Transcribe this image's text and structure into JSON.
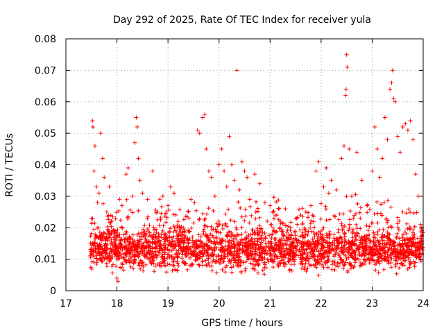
{
  "chart_data": {
    "type": "scatter",
    "title": "Day 292 of 2025, Rate Of TEC Index for receiver yula",
    "xlabel": "GPS time / hours",
    "ylabel": "ROTI / TECUs",
    "xlim": [
      17,
      24
    ],
    "ylim": [
      0,
      0.08
    ],
    "xticks": [
      17,
      18,
      19,
      20,
      21,
      22,
      23,
      24
    ],
    "xtick_labels": [
      "17",
      "18",
      "19",
      "20",
      "21",
      "22",
      "23",
      "24"
    ],
    "yticks": [
      0,
      0.01,
      0.02,
      0.03,
      0.04,
      0.05,
      0.06,
      0.07,
      0.08
    ],
    "ytick_labels": [
      "0",
      "0.01",
      "0.02",
      "0.03",
      "0.04",
      "0.05",
      "0.06",
      "0.07",
      "0.08"
    ],
    "grid": true,
    "marker": "+",
    "color": "#ff0000",
    "series": [
      {
        "name": "ROTI",
        "points": [
          [
            17.52,
            0.054
          ],
          [
            17.53,
            0.052
          ],
          [
            17.55,
            0.038
          ],
          [
            17.57,
            0.046
          ],
          [
            17.6,
            0.033
          ],
          [
            17.62,
            0.028
          ],
          [
            17.65,
            0.031
          ],
          [
            17.68,
            0.05
          ],
          [
            17.72,
            0.042
          ],
          [
            17.75,
            0.036
          ],
          [
            17.8,
            0.025
          ],
          [
            17.85,
            0.033
          ],
          [
            17.9,
            0.022
          ],
          [
            17.95,
            0.018
          ],
          [
            18.0,
            0.004
          ],
          [
            18.02,
            0.003
          ],
          [
            18.05,
            0.029
          ],
          [
            18.1,
            0.027
          ],
          [
            18.18,
            0.037
          ],
          [
            18.22,
            0.039
          ],
          [
            18.3,
            0.03
          ],
          [
            18.35,
            0.047
          ],
          [
            18.38,
            0.055
          ],
          [
            18.4,
            0.052
          ],
          [
            18.42,
            0.042
          ],
          [
            18.45,
            0.035
          ],
          [
            18.5,
            0.031
          ],
          [
            18.6,
            0.029
          ],
          [
            18.7,
            0.038
          ],
          [
            18.8,
            0.025
          ],
          [
            18.9,
            0.03
          ],
          [
            19.0,
            0.027
          ],
          [
            19.05,
            0.033
          ],
          [
            19.12,
            0.031
          ],
          [
            19.2,
            0.022
          ],
          [
            19.3,
            0.02
          ],
          [
            19.4,
            0.015
          ],
          [
            19.45,
            0.029
          ],
          [
            19.52,
            0.028
          ],
          [
            19.58,
            0.051
          ],
          [
            19.62,
            0.05
          ],
          [
            19.68,
            0.055
          ],
          [
            19.72,
            0.056
          ],
          [
            19.75,
            0.045
          ],
          [
            19.8,
            0.038
          ],
          [
            19.85,
            0.036
          ],
          [
            19.92,
            0.03
          ],
          [
            20.0,
            0.04
          ],
          [
            20.05,
            0.045
          ],
          [
            20.1,
            0.038
          ],
          [
            20.15,
            0.033
          ],
          [
            20.2,
            0.049
          ],
          [
            20.25,
            0.04
          ],
          [
            20.3,
            0.035
          ],
          [
            20.35,
            0.07
          ],
          [
            20.4,
            0.032
          ],
          [
            20.45,
            0.041
          ],
          [
            20.5,
            0.038
          ],
          [
            20.55,
            0.036
          ],
          [
            20.6,
            0.029
          ],
          [
            20.7,
            0.037
          ],
          [
            20.8,
            0.034
          ],
          [
            20.9,
            0.028
          ],
          [
            21.0,
            0.027
          ],
          [
            21.1,
            0.024
          ],
          [
            21.2,
            0.022
          ],
          [
            21.3,
            0.026
          ],
          [
            21.4,
            0.02
          ],
          [
            21.5,
            0.023
          ],
          [
            21.6,
            0.024
          ],
          [
            21.7,
            0.025
          ],
          [
            21.8,
            0.027
          ],
          [
            21.9,
            0.038
          ],
          [
            21.95,
            0.041
          ],
          [
            22.05,
            0.033
          ],
          [
            22.1,
            0.039
          ],
          [
            22.15,
            0.031
          ],
          [
            22.2,
            0.035
          ],
          [
            22.3,
            0.032
          ],
          [
            22.4,
            0.042
          ],
          [
            22.45,
            0.046
          ],
          [
            22.48,
            0.062
          ],
          [
            22.49,
            0.064
          ],
          [
            22.5,
            0.075
          ],
          [
            22.51,
            0.071
          ],
          [
            22.55,
            0.045
          ],
          [
            22.6,
            0.03
          ],
          [
            22.7,
            0.044
          ],
          [
            22.8,
            0.035
          ],
          [
            22.9,
            0.027
          ],
          [
            23.0,
            0.038
          ],
          [
            23.05,
            0.052
          ],
          [
            23.1,
            0.045
          ],
          [
            23.15,
            0.036
          ],
          [
            23.2,
            0.042
          ],
          [
            23.25,
            0.055
          ],
          [
            23.3,
            0.048
          ],
          [
            23.35,
            0.064
          ],
          [
            23.38,
            0.066
          ],
          [
            23.4,
            0.07
          ],
          [
            23.42,
            0.061
          ],
          [
            23.45,
            0.06
          ],
          [
            23.5,
            0.049
          ],
          [
            23.55,
            0.044
          ],
          [
            23.6,
            0.052
          ],
          [
            23.65,
            0.053
          ],
          [
            23.7,
            0.051
          ],
          [
            23.75,
            0.054
          ],
          [
            23.8,
            0.048
          ],
          [
            23.85,
            0.037
          ],
          [
            23.9,
            0.03
          ],
          [
            23.95,
            0.021
          ],
          [
            23.98,
            0.019
          ]
        ],
        "baseline_band": {
          "x_range": [
            17.48,
            24.0
          ],
          "y_range": [
            0.004,
            0.022
          ],
          "approx_count": 2600
        }
      }
    ]
  }
}
